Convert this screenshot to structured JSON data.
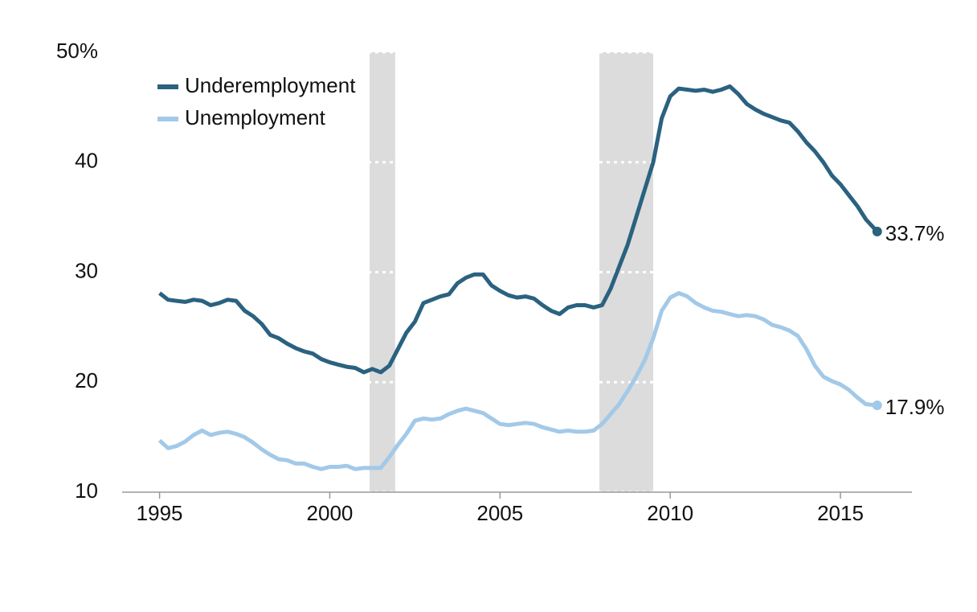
{
  "chart_data": {
    "type": "line",
    "x": [
      1995,
      1995.25,
      1995.5,
      1995.75,
      1996,
      1996.25,
      1996.5,
      1996.75,
      1997,
      1997.25,
      1997.5,
      1997.75,
      1998,
      1998.25,
      1998.5,
      1998.75,
      1999,
      1999.25,
      1999.5,
      1999.75,
      2000,
      2000.25,
      2000.5,
      2000.75,
      2001,
      2001.25,
      2001.5,
      2001.75,
      2002,
      2002.25,
      2002.5,
      2002.75,
      2003,
      2003.25,
      2003.5,
      2003.75,
      2004,
      2004.25,
      2004.5,
      2004.75,
      2005,
      2005.25,
      2005.5,
      2005.75,
      2006,
      2006.25,
      2006.5,
      2006.75,
      2007,
      2007.25,
      2007.5,
      2007.75,
      2008,
      2008.25,
      2008.5,
      2008.75,
      2009,
      2009.25,
      2009.5,
      2009.75,
      2010,
      2010.25,
      2010.5,
      2010.75,
      2011,
      2011.25,
      2011.5,
      2011.75,
      2012,
      2012.25,
      2012.5,
      2012.75,
      2013,
      2013.25,
      2013.5,
      2013.75,
      2014,
      2014.25,
      2014.5,
      2014.75,
      2015,
      2015.25,
      2015.5,
      2015.75,
      2016.08
    ],
    "series": [
      {
        "name": "Underemployment",
        "color": "#2a6280",
        "values": [
          28.1,
          27.5,
          27.4,
          27.3,
          27.5,
          27.4,
          27.0,
          27.2,
          27.5,
          27.4,
          26.5,
          26.0,
          25.3,
          24.3,
          24.0,
          23.5,
          23.1,
          22.8,
          22.6,
          22.1,
          21.8,
          21.6,
          21.4,
          21.3,
          20.9,
          21.2,
          20.9,
          21.5,
          23.0,
          24.5,
          25.5,
          27.2,
          27.5,
          27.8,
          28.0,
          29.0,
          29.5,
          29.8,
          29.8,
          28.8,
          28.3,
          27.9,
          27.7,
          27.8,
          27.6,
          27.0,
          26.5,
          26.2,
          26.8,
          27.0,
          27.0,
          26.8,
          27.0,
          28.5,
          30.5,
          32.5,
          35.0,
          37.5,
          40.0,
          44.0,
          46.0,
          46.7,
          46.6,
          46.5,
          46.6,
          46.4,
          46.6,
          46.9,
          46.2,
          45.3,
          44.8,
          44.4,
          44.1,
          43.8,
          43.6,
          42.8,
          41.8,
          41.0,
          40.0,
          38.8,
          38.0,
          37.0,
          36.0,
          34.8,
          33.7
        ],
        "value_labels": [
          null,
          null,
          null,
          null,
          null,
          null,
          null,
          null,
          null,
          null,
          null,
          null,
          null,
          null,
          null,
          null,
          null,
          null,
          null,
          null,
          null,
          null,
          null,
          null,
          null,
          null,
          null,
          null,
          null,
          null,
          null,
          null,
          null,
          null,
          null,
          null,
          null,
          null,
          null,
          null,
          null,
          null,
          null,
          null,
          null,
          null,
          null,
          null,
          null,
          null,
          null,
          null,
          null,
          null,
          null,
          null,
          null,
          null,
          null,
          null,
          null,
          null,
          null,
          null,
          null,
          null,
          null,
          null,
          null,
          null,
          null,
          null,
          null,
          null,
          null,
          null,
          null,
          null,
          null,
          null,
          null,
          null,
          null,
          null,
          "33.7%"
        ]
      },
      {
        "name": "Unemployment",
        "color": "#a3c9e8",
        "values": [
          14.7,
          14.0,
          14.2,
          14.6,
          15.2,
          15.6,
          15.2,
          15.4,
          15.5,
          15.3,
          15.0,
          14.5,
          13.9,
          13.4,
          13.0,
          12.9,
          12.6,
          12.6,
          12.3,
          12.1,
          12.3,
          12.3,
          12.4,
          12.1,
          12.2,
          12.2,
          12.2,
          13.2,
          14.3,
          15.3,
          16.5,
          16.7,
          16.6,
          16.7,
          17.1,
          17.4,
          17.6,
          17.4,
          17.2,
          16.7,
          16.2,
          16.1,
          16.2,
          16.3,
          16.2,
          15.9,
          15.7,
          15.5,
          15.6,
          15.5,
          15.5,
          15.6,
          16.2,
          17.1,
          18.0,
          19.2,
          20.5,
          22.0,
          24.0,
          26.5,
          27.7,
          28.1,
          27.8,
          27.2,
          26.8,
          26.5,
          26.4,
          26.2,
          26.0,
          26.1,
          26.0,
          25.7,
          25.2,
          25.0,
          24.7,
          24.2,
          23.0,
          21.5,
          20.5,
          20.1,
          19.8,
          19.3,
          18.6,
          18.0,
          17.9
        ],
        "value_labels": [
          null,
          null,
          null,
          null,
          null,
          null,
          null,
          null,
          null,
          null,
          null,
          null,
          null,
          null,
          null,
          null,
          null,
          null,
          null,
          null,
          null,
          null,
          null,
          null,
          null,
          null,
          null,
          null,
          null,
          null,
          null,
          null,
          null,
          null,
          null,
          null,
          null,
          null,
          null,
          null,
          null,
          null,
          null,
          null,
          null,
          null,
          null,
          null,
          null,
          null,
          null,
          null,
          null,
          null,
          null,
          null,
          null,
          null,
          null,
          null,
          null,
          null,
          null,
          null,
          null,
          null,
          null,
          null,
          null,
          null,
          null,
          null,
          null,
          null,
          null,
          null,
          null,
          null,
          null,
          null,
          null,
          null,
          null,
          null,
          "17.9%"
        ]
      }
    ],
    "recessions": [
      [
        2001.17,
        2001.92
      ],
      [
        2007.92,
        2009.5
      ]
    ],
    "recession_color": "#dcdcdc",
    "xlim": [
      1993.9,
      2017.1
    ],
    "xticks": [
      1995,
      2000,
      2005,
      2010,
      2015
    ],
    "ylim": [
      10,
      50
    ],
    "yticks": [
      10,
      20,
      30,
      40,
      {
        "value": 50,
        "label": "50%"
      }
    ],
    "grid": true,
    "legend": "upper left"
  }
}
